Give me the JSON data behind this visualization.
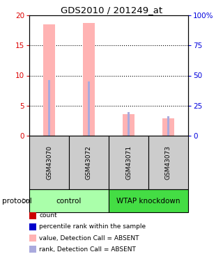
{
  "title": "GDS2010 / 201249_at",
  "samples": [
    "GSM43070",
    "GSM43072",
    "GSM43071",
    "GSM43073"
  ],
  "bar_values_pink": [
    18.5,
    18.7,
    3.6,
    2.9
  ],
  "bar_values_blue": [
    9.3,
    9.0,
    3.9,
    3.2
  ],
  "ylim": [
    0,
    20
  ],
  "yticks_left": [
    0,
    5,
    10,
    15,
    20
  ],
  "yticks_right": [
    0,
    25,
    50,
    75,
    100
  ],
  "yticks_right_labels": [
    "0",
    "25",
    "50",
    "75",
    "100%"
  ],
  "ylabel_left_color": "#dd0000",
  "ylabel_right_color": "#0000dd",
  "color_pink": "#ffb3b3",
  "color_blue": "#aaaadd",
  "group_color_control": "#aaffaa",
  "group_color_wtap": "#44dd44",
  "sample_bg_color": "#cccccc",
  "legend_items": [
    {
      "color": "#cc0000",
      "label": "count"
    },
    {
      "color": "#0000cc",
      "label": "percentile rank within the sample"
    },
    {
      "color": "#ffb3b3",
      "label": "value, Detection Call = ABSENT"
    },
    {
      "color": "#aaaadd",
      "label": "rank, Detection Call = ABSENT"
    }
  ],
  "protocol_label": "protocol",
  "fig_width": 3.2,
  "fig_height": 3.75,
  "dpi": 100
}
